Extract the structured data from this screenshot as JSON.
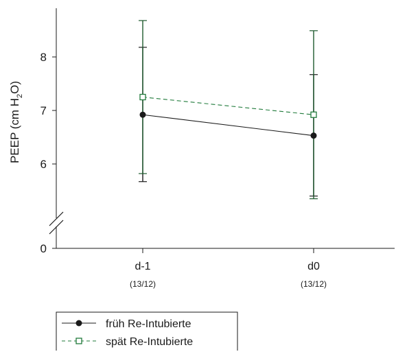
{
  "chart_data": {
    "type": "line",
    "categories": [
      "d-1",
      "d0"
    ],
    "category_sublabels": [
      "(13/12)",
      "(13/12)"
    ],
    "ylabel": {
      "prefix": "PEEP (cm H",
      "sub": "2",
      "suffix": "O)"
    },
    "yticks": [
      "6",
      "7",
      "8"
    ],
    "y_break_tick": "0",
    "ylim": [
      5.0,
      8.9
    ],
    "y_axis_break": true,
    "grid": false,
    "legend_position": "bottom-left",
    "series": [
      {
        "name": "früh Re-Intubierte",
        "marker": "filled-circle",
        "line_style": "solid",
        "color": "#1a1a1a",
        "errorbar_color": "#1a1a1a",
        "values": [
          6.92,
          6.53
        ],
        "error_low": [
          5.67,
          5.4
        ],
        "error_high": [
          8.18,
          7.67
        ]
      },
      {
        "name": "spät Re-Intubierte",
        "marker": "open-square",
        "line_style": "dashed",
        "color": "#1f7a3a",
        "errorbar_color": "#1e5a2e",
        "values": [
          7.25,
          6.92
        ],
        "error_low": [
          5.82,
          5.35
        ],
        "error_high": [
          8.68,
          8.49
        ]
      }
    ]
  }
}
